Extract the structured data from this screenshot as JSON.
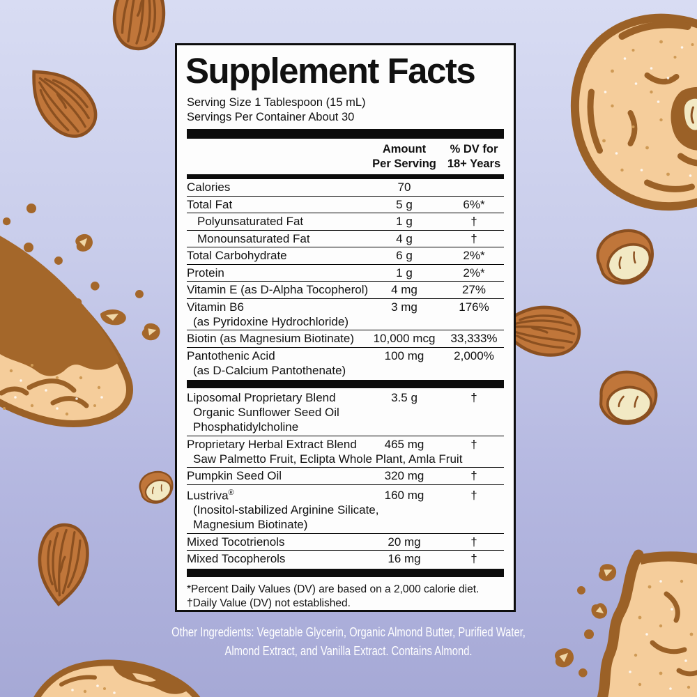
{
  "label": {
    "title": "Supplement Facts",
    "serving_size": "Serving Size 1 Tablespoon (15 mL)",
    "servings_per_container": "Servings Per Container About 30",
    "header": {
      "amount_line1": "Amount",
      "amount_line2": "Per Serving",
      "dv_line1": "% DV for",
      "dv_line2": "18+ Years"
    },
    "nutrients": [
      {
        "name": "Calories",
        "amount": "70",
        "dv": ""
      },
      {
        "name": "Total Fat",
        "amount": "5 g",
        "dv": "6%*"
      },
      {
        "name": "Polyunsaturated Fat",
        "indent": true,
        "amount": "1 g",
        "dv": "†"
      },
      {
        "name": "Monounsaturated Fat",
        "indent": true,
        "amount": "4 g",
        "dv": "†"
      },
      {
        "name": "Total Carbohydrate",
        "amount": "6 g",
        "dv": "2%*"
      },
      {
        "name": "Protein",
        "amount": "1 g",
        "dv": "2%*"
      },
      {
        "name": "Vitamin E (as D-Alpha Tocopherol)",
        "amount": "4 mg",
        "dv": "27%"
      },
      {
        "name": "Vitamin B6",
        "amount": "3 mg",
        "dv": "176%",
        "sub": [
          "(as Pyridoxine Hydrochloride)"
        ]
      },
      {
        "name": "Biotin (as Magnesium Biotinate)",
        "amount": "10,000 mcg",
        "dv": "33,333%"
      },
      {
        "name": "Pantothenic Acid",
        "amount": "100 mg",
        "dv": "2,000%",
        "sub": [
          "(as D-Calcium Pantothenate)"
        ]
      }
    ],
    "blends": [
      {
        "name": "Liposomal Proprietary Blend",
        "amount": "3.5 g",
        "dv": "†",
        "sub": [
          "Organic Sunflower Seed Oil",
          "Phosphatidylcholine"
        ]
      },
      {
        "name": "Proprietary Herbal Extract Blend",
        "amount": "465 mg",
        "dv": "†",
        "sub": [
          "Saw Palmetto Fruit, Eclipta Whole Plant, Amla Fruit"
        ]
      },
      {
        "name": "Pumpkin Seed Oil",
        "amount": "320 mg",
        "dv": "†"
      },
      {
        "name": "Lustriva®",
        "amount": "160 mg",
        "dv": "†",
        "sub": [
          "(Inositol-stabilized Arginine Silicate,",
          "Magnesium Biotinate)"
        ]
      },
      {
        "name": "Mixed Tocotrienols",
        "amount": "20 mg",
        "dv": "†"
      },
      {
        "name": "Mixed Tocopherols",
        "amount": "16 mg",
        "dv": "†"
      }
    ],
    "footnotes": [
      "*Percent Daily Values (DV) are based on a 2,000 calorie diet.",
      "†Daily Value (DV) not established."
    ]
  },
  "other_ingredients": {
    "line1": "Other Ingredients: Vegetable Glycerin, Organic Almond Butter, Purified Water,",
    "line2": "Almond Extract, and Vanilla Extract. Contains Almond."
  },
  "colors": {
    "background_top": "#d8dcf3",
    "background_bottom": "#a6a9d6",
    "panel_background": "#fdfdfd",
    "panel_border": "#0d0d0d",
    "almond_fill": "#c0763a",
    "almond_outline": "#8b5020",
    "cookie_fill": "#f5cd9b",
    "cookie_outline": "#9b6127",
    "cream": "#f2e9c4",
    "butter_smear": "#a4672a",
    "bottom_text": "#ffffff"
  },
  "decorations": [
    "almond-icon",
    "almond-half-icon",
    "cookie-ball-icon",
    "almond-butter-smear-icon",
    "cookie-piece-icon",
    "crumb-icon"
  ]
}
